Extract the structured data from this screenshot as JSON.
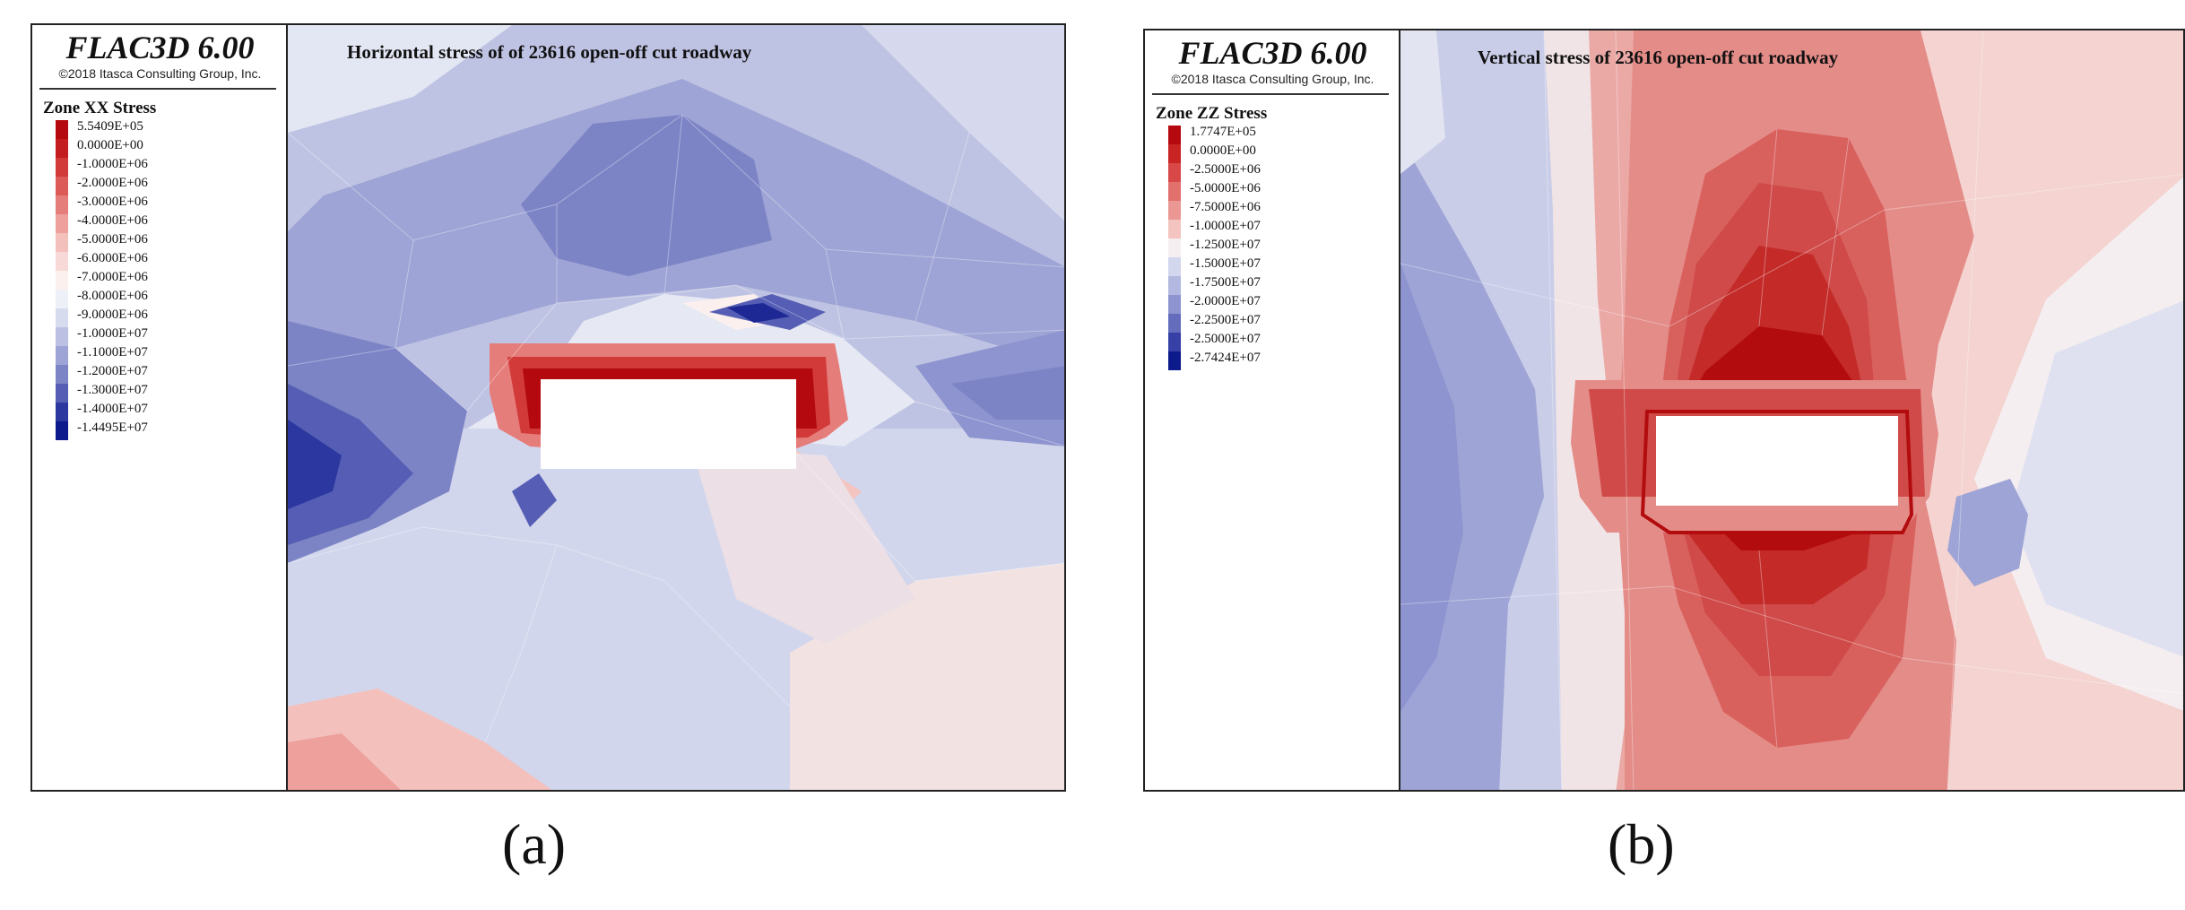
{
  "panels": [
    {
      "software": "FLAC3D 6.00",
      "copyright": "©2018 Itasca Consulting Group, Inc.",
      "legend_title": "Zone XX Stress",
      "legend_labels": [
        "5.5409E+05",
        "0.0000E+00",
        "-1.0000E+06",
        "-2.0000E+06",
        "-3.0000E+06",
        "-4.0000E+06",
        "-5.0000E+06",
        "-6.0000E+06",
        "-7.0000E+06",
        "-8.0000E+06",
        "-9.0000E+06",
        "-1.0000E+07",
        "-1.1000E+07",
        "-1.2000E+07",
        "-1.3000E+07",
        "-1.4000E+07",
        "-1.4495E+07"
      ],
      "legend_colors": [
        "#b40a0f",
        "#c31d20",
        "#d23a3a",
        "#dc5a58",
        "#e57d7a",
        "#eda09c",
        "#f3c0bc",
        "#f7dad7",
        "#fbf0ee",
        "#eef0f8",
        "#d7dbee",
        "#bcc1e3",
        "#9ea4d5",
        "#7d84c6",
        "#555eb4",
        "#2c37a0",
        "#0d1a8c"
      ],
      "plot_title": "Horizontal stress of of 23616 open-off cut roadway",
      "caption": "(a)"
    },
    {
      "software": "FLAC3D 6.00",
      "copyright": "©2018 Itasca Consulting Group, Inc.",
      "legend_title": "Zone ZZ Stress",
      "legend_labels": [
        "1.7747E+05",
        "0.0000E+00",
        "-2.5000E+06",
        "-5.0000E+06",
        "-7.5000E+06",
        "-1.0000E+07",
        "-1.2500E+07",
        "-1.5000E+07",
        "-1.7500E+07",
        "-2.0000E+07",
        "-2.2500E+07",
        "-2.5000E+07",
        "-2.7424E+07"
      ],
      "legend_colors": [
        "#b40a0f",
        "#c82424",
        "#d84848",
        "#e2706c",
        "#eb9894",
        "#f4c4c0",
        "#f5eef0",
        "#d3d7ee",
        "#b3b8e0",
        "#8d94cf",
        "#646cbc",
        "#3640a6",
        "#0d1a8c"
      ],
      "plot_title": "Vertical stress of 23616 open-off cut roadway",
      "caption": "(b)"
    }
  ]
}
